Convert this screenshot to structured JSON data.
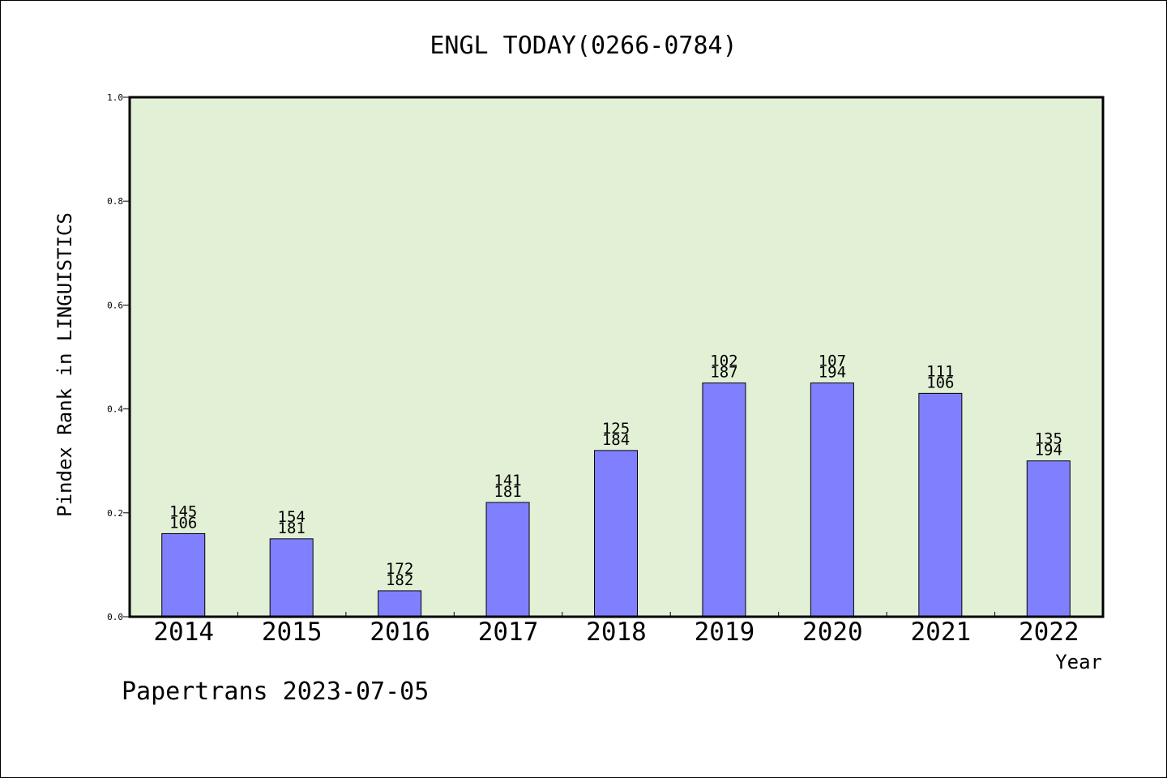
{
  "chart_data": {
    "type": "bar",
    "title": "ENGL TODAY(0266-0784)",
    "xlabel": "Year",
    "ylabel": "Pindex Rank in LINGUISTICS",
    "footer": "Papertrans 2023-07-05",
    "categories": [
      "2014",
      "2015",
      "2016",
      "2017",
      "2018",
      "2019",
      "2020",
      "2021",
      "2022"
    ],
    "values": [
      0.16,
      0.15,
      0.05,
      0.22,
      0.32,
      0.45,
      0.45,
      0.43,
      0.3
    ],
    "labels_top": [
      "145",
      "154",
      "172",
      "141",
      "125",
      "102",
      "107",
      "111",
      "135"
    ],
    "labels_bottom": [
      "106",
      "181",
      "182",
      "181",
      "184",
      "187",
      "194",
      "106",
      "194"
    ],
    "ylim": [
      0,
      1.0
    ],
    "yticks": [
      "0.0",
      "0.2",
      "0.4",
      "0.6",
      "0.8",
      "1.0"
    ],
    "grid": false,
    "colors": {
      "bar": "#8080ff",
      "plot_bg": "#e2f0d6",
      "axis": "#000000"
    }
  }
}
